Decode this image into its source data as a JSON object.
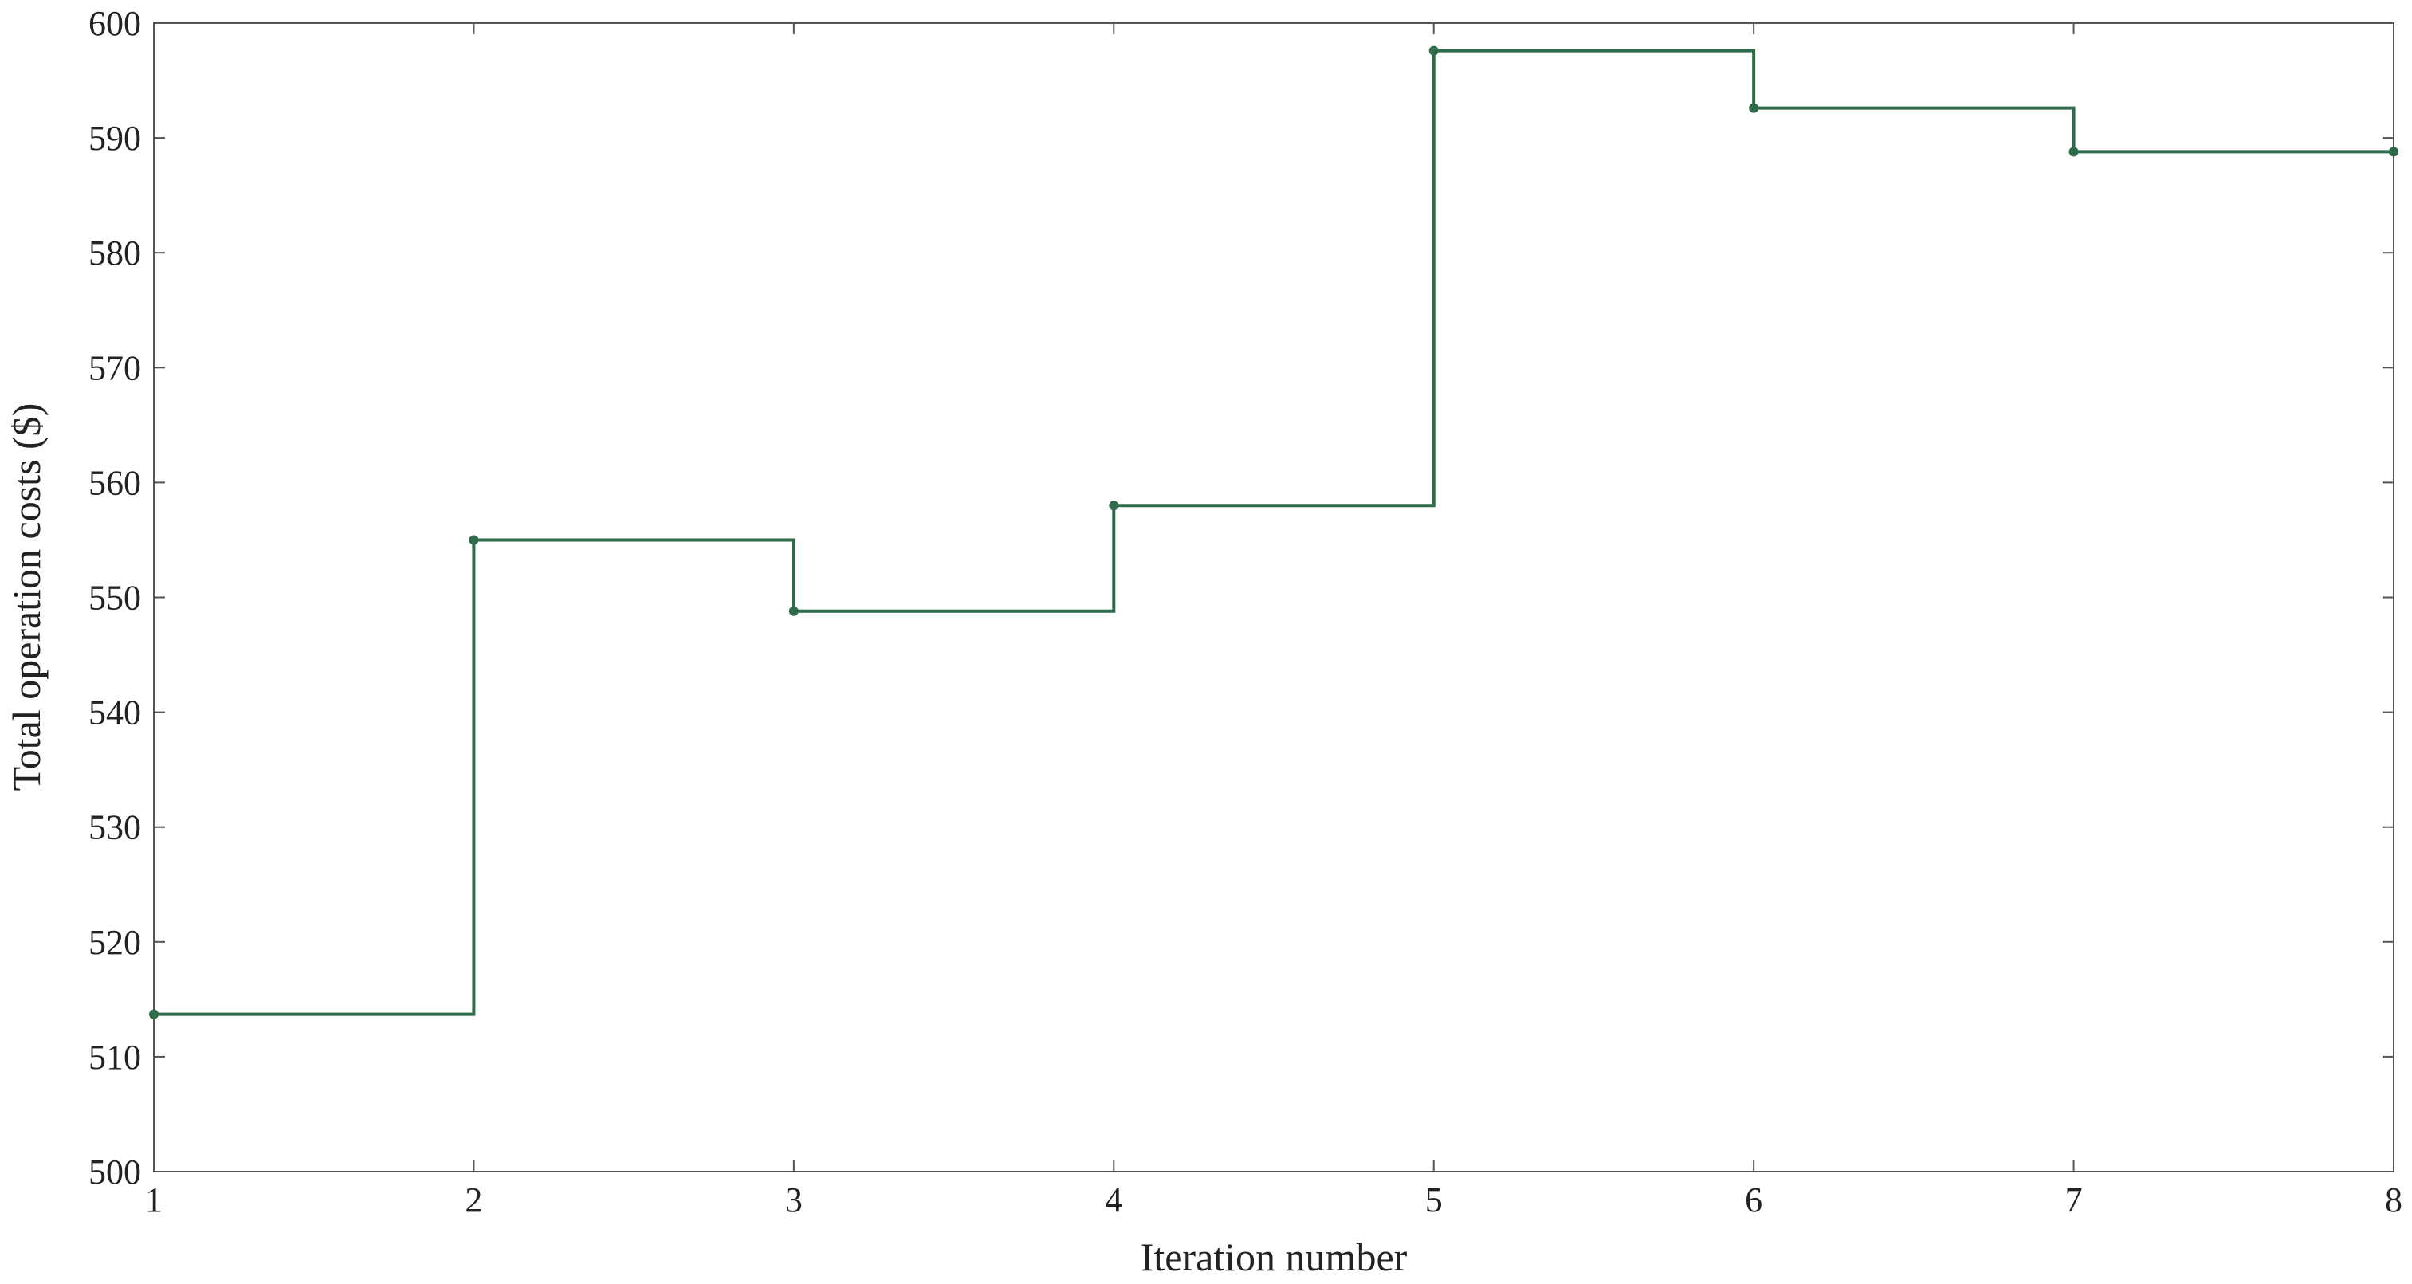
{
  "chart_data": {
    "type": "line",
    "step": "post",
    "title": "",
    "xlabel": "Iteration number",
    "ylabel": "Total operation costs ($)",
    "xlim": [
      1,
      8
    ],
    "ylim": [
      500,
      600
    ],
    "xticks": [
      1,
      2,
      3,
      4,
      5,
      6,
      7,
      8
    ],
    "yticks": [
      500,
      510,
      520,
      530,
      540,
      550,
      560,
      570,
      580,
      590,
      600
    ],
    "grid": false,
    "series": [
      {
        "color": "#2e6b4a",
        "markers": true,
        "x": [
          1,
          2,
          3,
          4,
          5,
          6,
          7,
          8
        ],
        "y": [
          513.7,
          555.0,
          548.8,
          558.0,
          597.6,
          592.6,
          588.8,
          588.8
        ]
      }
    ]
  }
}
